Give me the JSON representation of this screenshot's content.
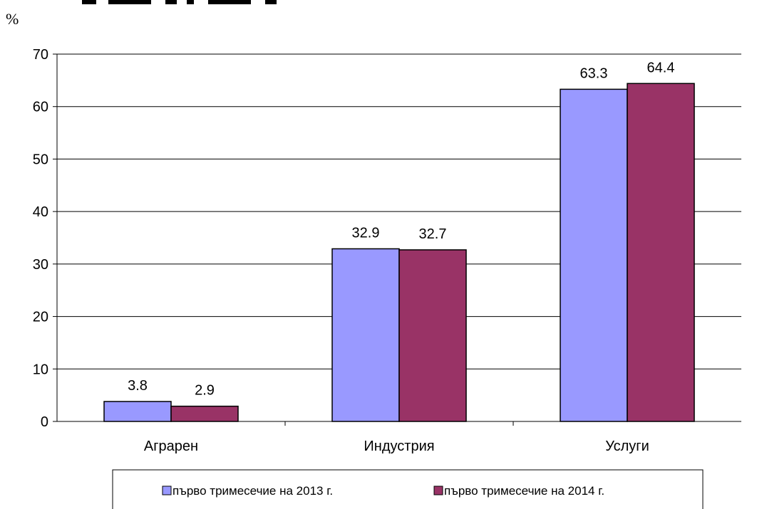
{
  "chart_data": {
    "type": "bar",
    "title": "",
    "ylabel": "%",
    "xlabel": "",
    "ylim": [
      0,
      70
    ],
    "yticks": [
      0,
      10,
      20,
      30,
      40,
      50,
      60,
      70
    ],
    "categories": [
      "Аграрен",
      "Индустрия",
      "Услуги"
    ],
    "series": [
      {
        "name": "първо тримесечие на 2013 г.",
        "values": [
          3.8,
          32.9,
          63.3
        ],
        "color": "#9999ff"
      },
      {
        "name": "първо тримесечие на 2014 г.",
        "values": [
          2.9,
          32.7,
          64.4
        ],
        "color": "#993366"
      }
    ],
    "grid": true,
    "legend": "bottom"
  }
}
